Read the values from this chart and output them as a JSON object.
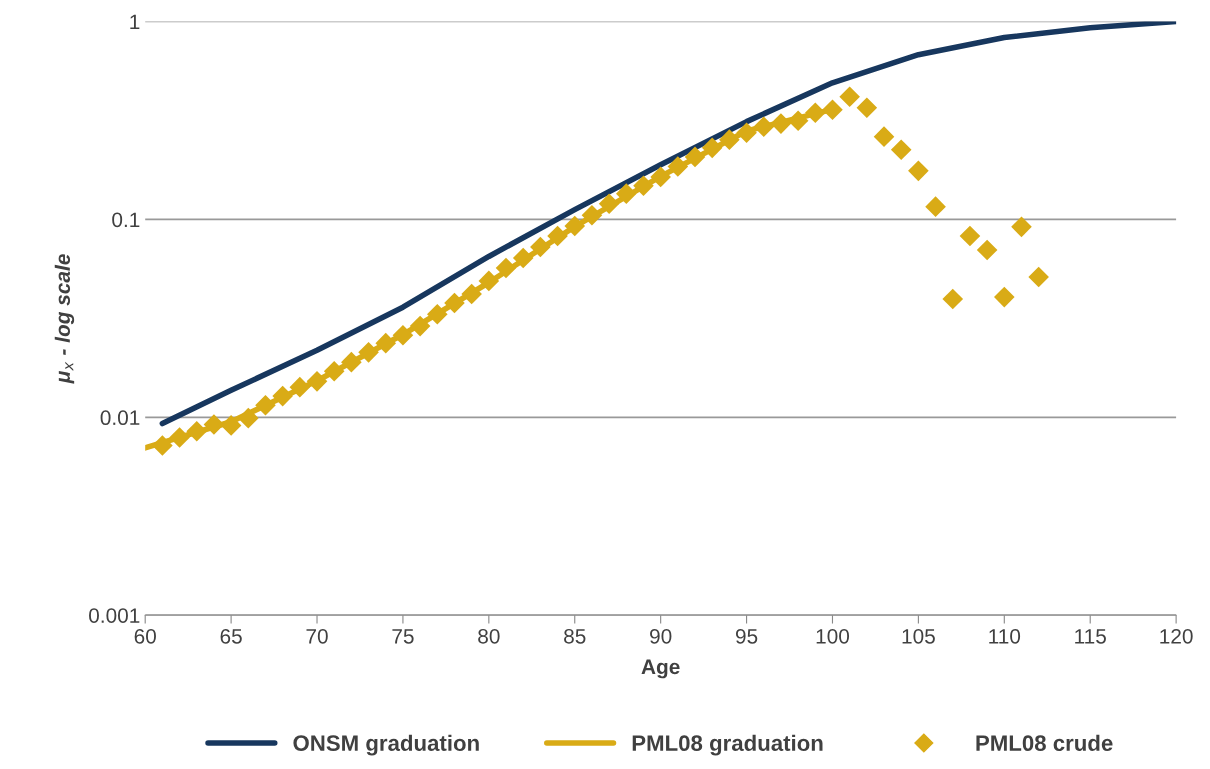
{
  "chart_data": {
    "type": "line",
    "xlabel": "Age",
    "ylabel": "μ$_{x}$ - log scale",
    "log": "y",
    "grid": "y",
    "legend": "bottom",
    "xlim": [
      60,
      120
    ],
    "xticks": [
      60,
      65,
      70,
      75,
      80,
      85,
      90,
      95,
      100,
      105,
      110,
      115,
      120
    ],
    "ylim": [
      0.001,
      1
    ],
    "yticks": [
      0.001,
      0.01,
      0.1,
      1
    ],
    "series": [
      {
        "name": "ONSM graduation",
        "color": "#17375e",
        "marker": "none",
        "x": [
          61,
          65,
          70,
          75,
          80,
          85,
          90,
          95,
          100,
          105,
          110,
          115,
          120
        ],
        "values": [
          0.0093,
          0.0137,
          0.0218,
          0.036,
          0.065,
          0.112,
          0.189,
          0.312,
          0.49,
          0.68,
          0.83,
          0.93,
          1.0
        ]
      },
      {
        "name": "PML08 graduation",
        "color": "#d9ab16",
        "marker": "none",
        "x": [
          60,
          65,
          70,
          75,
          80,
          85,
          90,
          95,
          100
        ],
        "values": [
          0.007,
          0.0095,
          0.0153,
          0.0262,
          0.048,
          0.092,
          0.165,
          0.28,
          0.36
        ]
      },
      {
        "name": "PML08 crude",
        "type": "scatter",
        "color": "#d9ab16",
        "marker": "diamond",
        "x": [
          61,
          62,
          63,
          64,
          65,
          66,
          67,
          68,
          69,
          70,
          71,
          72,
          73,
          74,
          75,
          76,
          77,
          78,
          79,
          80,
          81,
          82,
          83,
          84,
          85,
          86,
          87,
          88,
          89,
          90,
          91,
          92,
          93,
          94,
          95,
          96,
          97,
          98,
          99,
          100,
          101,
          102,
          103,
          104,
          105,
          106,
          107,
          108,
          109,
          110,
          111,
          112
        ],
        "values": [
          0.0072,
          0.0079,
          0.0085,
          0.0092,
          0.0091,
          0.0099,
          0.0115,
          0.0128,
          0.0142,
          0.0152,
          0.0171,
          0.019,
          0.0213,
          0.0237,
          0.026,
          0.0289,
          0.0332,
          0.0378,
          0.042,
          0.0489,
          0.0568,
          0.0638,
          0.0726,
          0.0825,
          0.0927,
          0.105,
          0.12,
          0.135,
          0.148,
          0.164,
          0.185,
          0.207,
          0.23,
          0.253,
          0.274,
          0.294,
          0.305,
          0.315,
          0.346,
          0.358,
          0.417,
          0.367,
          0.262,
          0.225,
          0.176,
          0.116,
          0.0396,
          0.0825,
          0.0701,
          0.0405,
          0.0917,
          0.0512
        ]
      }
    ]
  }
}
